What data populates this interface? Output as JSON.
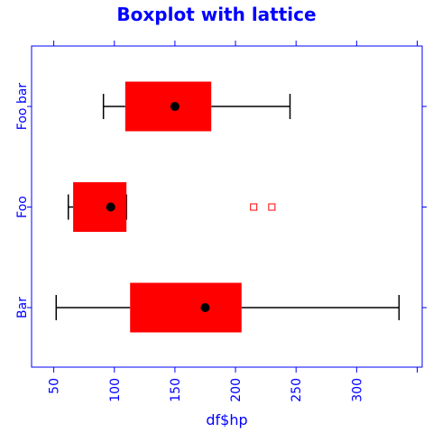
{
  "chart_data": {
    "type": "boxplot",
    "title": "Boxplot with lattice",
    "xlabel": "df$hp",
    "ylabel": "",
    "xlim": [
      32,
      351
    ],
    "x_ticks": [
      50,
      100,
      150,
      200,
      250,
      300
    ],
    "categories": [
      "Bar",
      "Foo",
      "Foo bar"
    ],
    "boxes": [
      {
        "category": "Bar",
        "min": 52,
        "q1": 113,
        "median": 175,
        "q3": 205,
        "max": 335,
        "outliers": []
      },
      {
        "category": "Foo",
        "min": 62,
        "q1": 66,
        "median": 97,
        "q3": 110,
        "max": 110,
        "outliers": [
          215,
          230
        ]
      },
      {
        "category": "Foo bar",
        "min": 91,
        "q1": 109,
        "median": 150,
        "q3": 180,
        "max": 245,
        "outliers": []
      }
    ],
    "grid": false,
    "colors": {
      "axis": "#0000ff",
      "text": "#0000ff",
      "box_fill": "#ff0000",
      "whisker": "#000000",
      "median": "#000000",
      "outlier": "#ff0000"
    }
  }
}
